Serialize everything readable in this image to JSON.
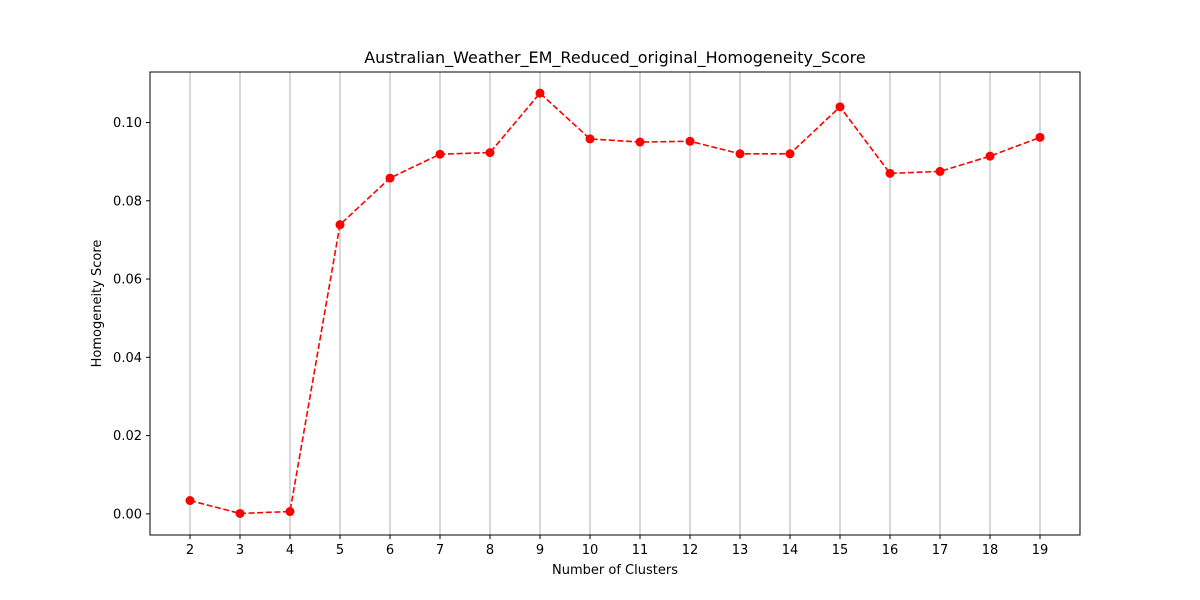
{
  "chart_data": {
    "type": "line",
    "title": "Australian_Weather_EM_Reduced_original_Homogeneity_Score",
    "xlabel": "Number of Clusters",
    "ylabel": "Homogeneity Score",
    "x": [
      2,
      3,
      4,
      5,
      6,
      7,
      8,
      9,
      10,
      11,
      12,
      13,
      14,
      15,
      16,
      17,
      18,
      19
    ],
    "series": [
      {
        "values": [
          0.0034,
          0.0001,
          0.0006,
          0.0739,
          0.0858,
          0.0919,
          0.0923,
          0.1075,
          0.0958,
          0.095,
          0.0952,
          0.092,
          0.092,
          0.104,
          0.087,
          0.0875,
          0.0914,
          0.0962
        ],
        "color": "#ff0000",
        "line_style": "dashed",
        "marker": "circle"
      }
    ],
    "xlim": [
      1.2,
      19.8
    ],
    "ylim": [
      -0.0054,
      0.1129
    ],
    "x_ticks": [
      "2",
      "3",
      "4",
      "5",
      "6",
      "7",
      "8",
      "9",
      "10",
      "11",
      "12",
      "13",
      "14",
      "15",
      "16",
      "17",
      "18",
      "19"
    ],
    "y_ticks": [
      "0.00",
      "0.02",
      "0.04",
      "0.06",
      "0.08",
      "0.10"
    ],
    "y_tick_values": [
      0.0,
      0.02,
      0.04,
      0.06,
      0.08,
      0.1
    ],
    "grid": "vertical",
    "grid_color": "#b0b0b0",
    "legend": "none"
  }
}
